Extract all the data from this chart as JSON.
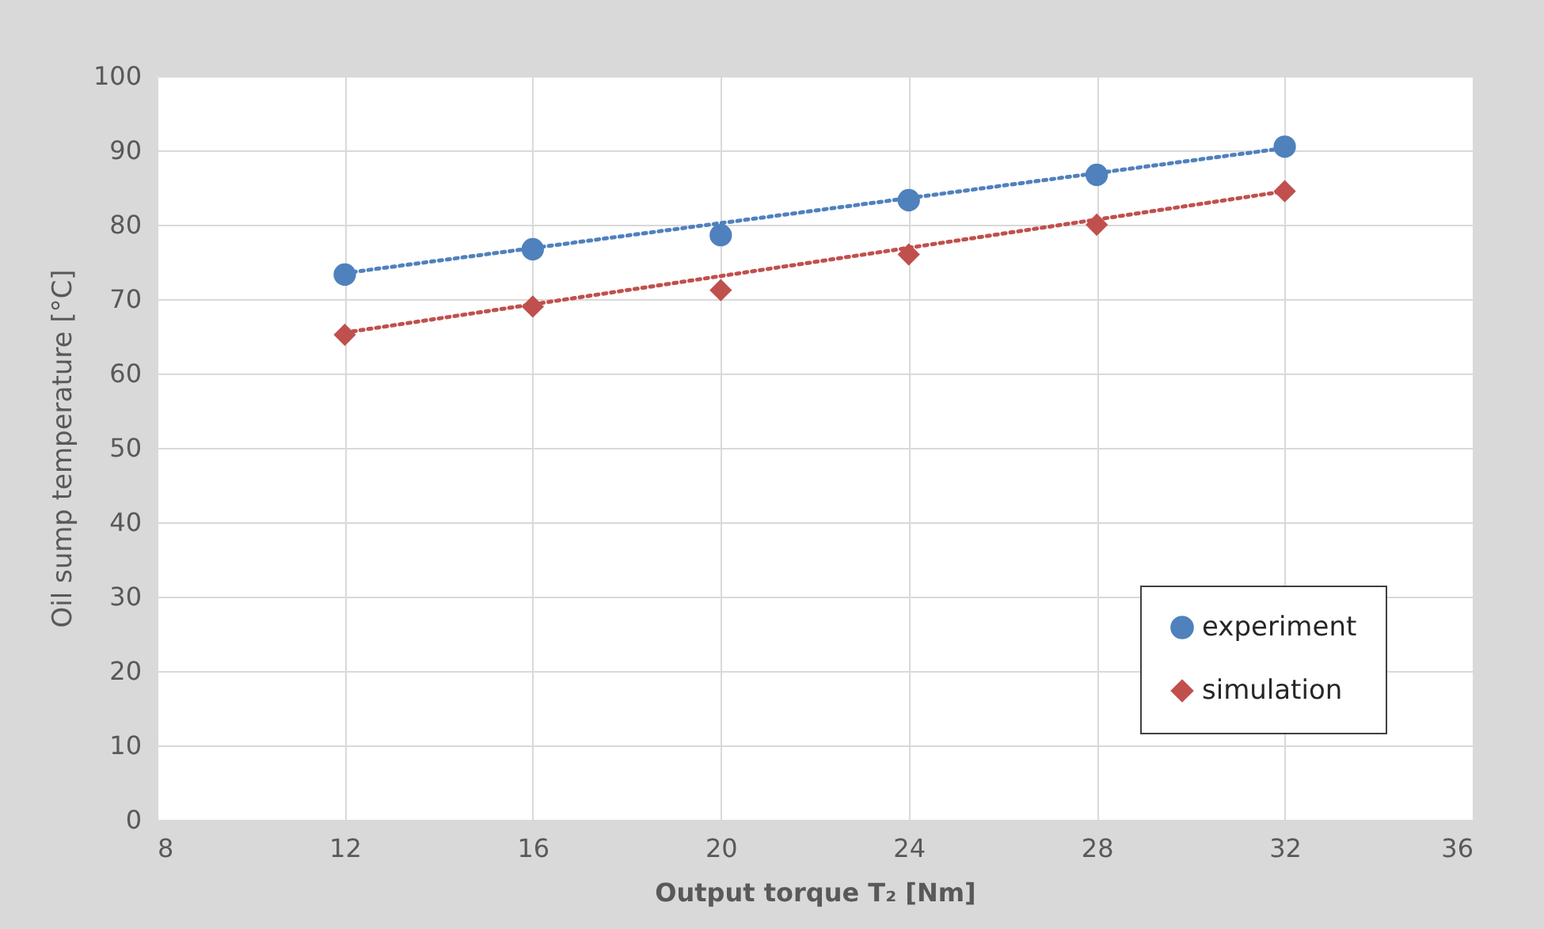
{
  "chart_data": {
    "type": "scatter",
    "xlabel": "Output torque T₂ [Nm]",
    "ylabel": "Oil sump temperature [°C]",
    "xlim": [
      8,
      36
    ],
    "xticks": [
      8,
      12,
      16,
      20,
      24,
      28,
      32,
      36
    ],
    "ylim": [
      0,
      100
    ],
    "yticks": [
      0,
      10,
      20,
      30,
      40,
      50,
      60,
      70,
      80,
      90,
      100
    ],
    "grid": true,
    "legend": "bottom right",
    "series": [
      {
        "name": "experiment",
        "color": "#4f81bd",
        "marker": "circle",
        "x": [
          12,
          16,
          20,
          24,
          28,
          32
        ],
        "values": [
          73.3,
          76.7,
          78.6,
          83.3,
          86.7,
          90.5
        ]
      },
      {
        "name": "simulation",
        "color": "#c0504d",
        "marker": "diamond",
        "x": [
          12,
          16,
          20,
          24,
          28,
          32
        ],
        "values": [
          65.2,
          69.0,
          71.2,
          76.0,
          80.0,
          84.5
        ]
      },
      {
        "type": "line",
        "color": "#4f81bd",
        "line_style": "dotted",
        "x": [
          12,
          32
        ],
        "values": [
          73.5,
          90.3
        ]
      },
      {
        "type": "line",
        "color": "#c0504d",
        "line_style": "dotted",
        "x": [
          12,
          32
        ],
        "values": [
          65.5,
          84.5
        ]
      }
    ]
  }
}
